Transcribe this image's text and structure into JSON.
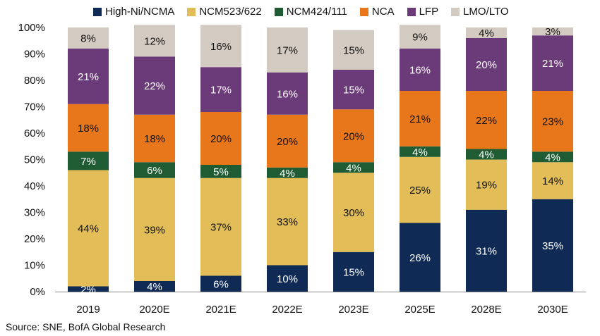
{
  "chart_data": {
    "type": "bar",
    "stacked": true,
    "categories": [
      "2019",
      "2020E",
      "2021E",
      "2022E",
      "2023E",
      "2025E",
      "2028E",
      "2030E"
    ],
    "series": [
      {
        "name": "High-Ni/NCMA",
        "color": "#0e2a55",
        "values": [
          2,
          4,
          6,
          10,
          15,
          26,
          31,
          35
        ],
        "labels": [
          "2%",
          "4%",
          "6%",
          "10%",
          "15%",
          "26%",
          "31%",
          "35%"
        ]
      },
      {
        "name": "NCM523/622",
        "color": "#e2bd58",
        "values": [
          44,
          39,
          37,
          33,
          30,
          25,
          19,
          14
        ],
        "labels": [
          "44%",
          "39%",
          "37%",
          "33%",
          "30%",
          "25%",
          "19%",
          "14%"
        ]
      },
      {
        "name": "NCM424/111",
        "color": "#1f5b33",
        "values": [
          7,
          6,
          5,
          4,
          4,
          4,
          4,
          4
        ],
        "labels": [
          "7%",
          "6%",
          "5%",
          "4%",
          "4%",
          "4%",
          "4%",
          "4%"
        ]
      },
      {
        "name": "NCA",
        "color": "#e8761a",
        "values": [
          18,
          18,
          20,
          20,
          20,
          21,
          22,
          23
        ],
        "labels": [
          "18%",
          "18%",
          "20%",
          "20%",
          "20%",
          "21%",
          "22%",
          "23%"
        ]
      },
      {
        "name": "LFP",
        "color": "#6b3a78",
        "values": [
          21,
          22,
          17,
          16,
          15,
          16,
          20,
          21
        ],
        "labels": [
          "21%",
          "22%",
          "17%",
          "16%",
          "15%",
          "16%",
          "20%",
          "21%"
        ]
      },
      {
        "name": "LMO/LTO",
        "color": "#d3cbc2",
        "values": [
          8,
          12,
          16,
          17,
          15,
          9,
          4,
          3
        ],
        "labels": [
          "8%",
          "12%",
          "16%",
          "17%",
          "15%",
          "9%",
          "4%",
          "3%"
        ]
      }
    ],
    "yticks": [
      "0%",
      "10%",
      "20%",
      "30%",
      "40%",
      "50%",
      "60%",
      "70%",
      "80%",
      "90%",
      "100%"
    ],
    "ylim": [
      0,
      100
    ],
    "legend_position": "top",
    "grid": false
  },
  "source": "Source: SNE, BofA Global Research"
}
